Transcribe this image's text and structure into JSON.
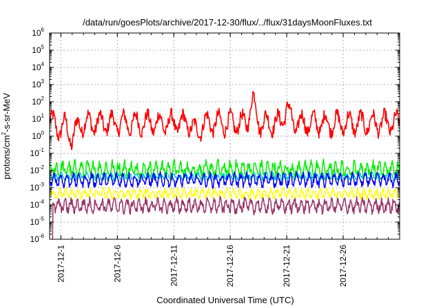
{
  "chart_data": {
    "type": "line",
    "title": "/data/run/goesPlots/archive/2017-12-30/flux/../flux/31daysMoonFluxes.txt",
    "xlabel": "Coordinated Universal Time (UTC)",
    "ylabel": "protons/cm2-s-sr-MeV",
    "ylabel_parts": {
      "base": "protons/cm",
      "sup": "2",
      "rest": "-s-sr-MeV"
    },
    "yscale": "log",
    "ylim": [
      1e-06,
      1000000.0
    ],
    "xlim": [
      "2017-11-30",
      "2017-12-31"
    ],
    "grid": true,
    "x_ticks": [
      "2017-12-1",
      "2017-12-6",
      "2017-12-11",
      "2017-12-16",
      "2017-12-21",
      "2017-12-26"
    ],
    "x_tick_day": [
      1,
      6,
      11,
      16,
      21,
      26
    ],
    "y_ticks": [
      {
        "base": "10",
        "exp": "-6"
      },
      {
        "base": "10",
        "exp": "-5"
      },
      {
        "base": "10",
        "exp": "-4"
      },
      {
        "base": "10",
        "exp": "-3"
      },
      {
        "base": "10",
        "exp": "-2"
      },
      {
        "base": "10",
        "exp": "-1"
      },
      {
        "base": "10",
        "exp": "0"
      },
      {
        "base": "10",
        "exp": "1"
      },
      {
        "base": "10",
        "exp": "2"
      },
      {
        "base": "10",
        "exp": "3"
      },
      {
        "base": "10",
        "exp": "4"
      },
      {
        "base": "10",
        "exp": "5"
      },
      {
        "base": "10",
        "exp": "6"
      }
    ],
    "series": [
      {
        "color": "#ff0000",
        "base_log": 0.75,
        "amp": 0.55,
        "noise": 0.35,
        "period": 1.05,
        "points": [
          [
            1,
            -0.4
          ],
          [
            2,
            -1.0
          ],
          [
            13,
            -0.6
          ],
          [
            18,
            1.35
          ],
          [
            21,
            0.9
          ]
        ]
      },
      {
        "color": "#00ee00",
        "base_log": -1.95,
        "amp": 0.35,
        "noise": 0.3,
        "period": 0.55,
        "points": []
      },
      {
        "color": "#00c8c8",
        "base_log": -2.35,
        "amp": 0.15,
        "noise": 0.12,
        "period": 0.55,
        "points": []
      },
      {
        "color": "#0000ff",
        "base_log": -2.55,
        "amp": 0.3,
        "noise": 0.2,
        "period": 0.55,
        "points": []
      },
      {
        "color": "#ffff00",
        "base_log": -3.35,
        "amp": 0.2,
        "noise": 0.15,
        "period": 0.55,
        "points": []
      },
      {
        "color": "#993366",
        "base_log": -4.05,
        "amp": 0.3,
        "noise": 0.25,
        "period": 0.55,
        "points": []
      }
    ]
  }
}
